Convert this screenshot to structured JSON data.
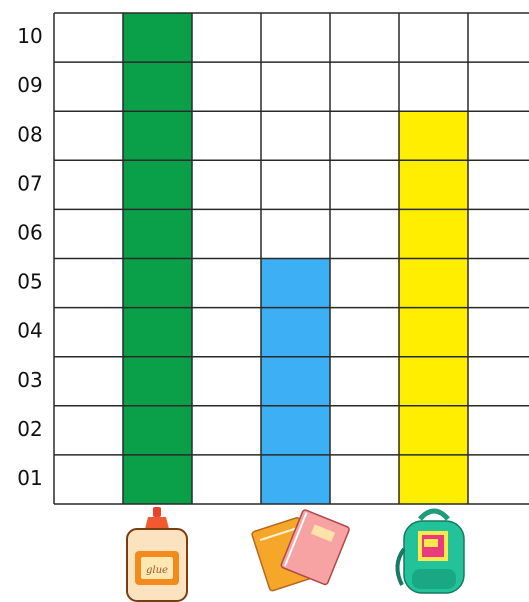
{
  "chart_data": {
    "type": "bar",
    "categories": [
      "glue",
      "notebooks",
      "backpack"
    ],
    "icons": [
      "glue-bottle-icon",
      "notebooks-icon",
      "backpack-icon"
    ],
    "values": [
      10,
      5,
      8
    ],
    "colors": [
      "#0aa04a",
      "#3daff5",
      "#ffee00"
    ],
    "ylim": [
      0,
      10
    ],
    "yticks": [
      "01",
      "02",
      "03",
      "04",
      "05",
      "06",
      "07",
      "08",
      "09",
      "10"
    ],
    "grid": true,
    "title": "",
    "xlabel": "",
    "ylabel": ""
  }
}
